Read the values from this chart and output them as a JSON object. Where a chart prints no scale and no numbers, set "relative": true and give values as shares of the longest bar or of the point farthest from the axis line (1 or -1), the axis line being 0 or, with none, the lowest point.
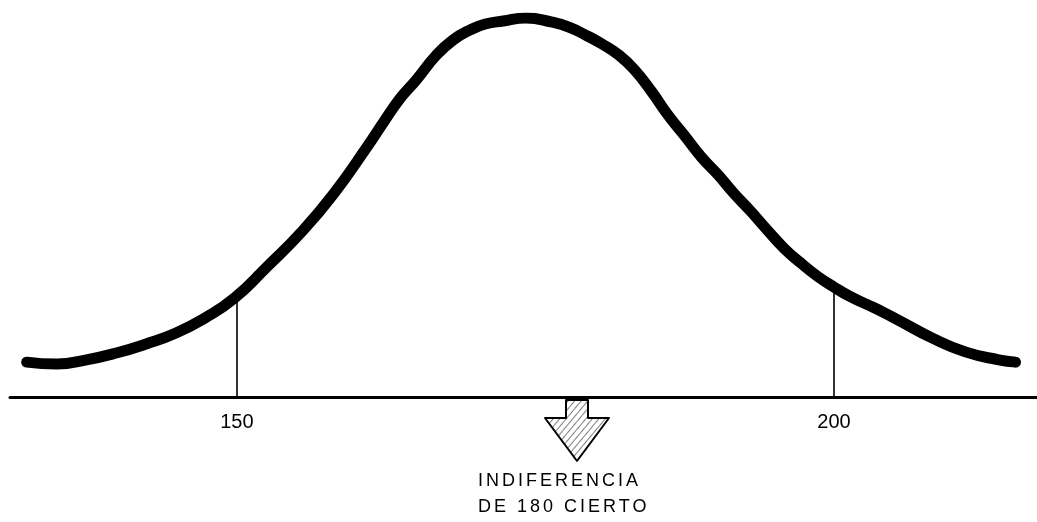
{
  "chart_data": {
    "type": "line",
    "relative": true,
    "x": [
      132.4,
      134.9,
      137.4,
      139.9,
      142.4,
      144.9,
      147.3,
      149.8,
      152.6,
      155.4,
      158.1,
      160.9,
      162.3,
      163.7,
      165.0,
      166.7,
      168.1,
      169.5,
      170.8,
      172.3,
      174.2,
      176.4,
      177.8,
      179.2,
      180.6,
      182.0,
      183.3,
      184.7,
      186.1,
      187.5,
      188.9,
      190.3,
      191.6,
      193.0,
      194.4,
      195.8,
      197.2,
      198.6,
      200.0,
      201.3,
      202.7,
      204.1,
      205.5,
      208.2,
      211.0,
      213.8,
      215.2
    ],
    "series": [
      {
        "color": "#000000",
        "values": [
          0.092,
          0.087,
          0.098,
          0.116,
          0.14,
          0.169,
          0.208,
          0.261,
          0.346,
          0.435,
          0.536,
          0.66,
          0.726,
          0.789,
          0.836,
          0.902,
          0.942,
          0.968,
          0.984,
          0.992,
          1.0,
          0.989,
          0.976,
          0.955,
          0.931,
          0.902,
          0.863,
          0.807,
          0.744,
          0.689,
          0.633,
          0.586,
          0.538,
          0.491,
          0.441,
          0.393,
          0.354,
          0.319,
          0.29,
          0.266,
          0.245,
          0.224,
          0.201,
          0.156,
          0.119,
          0.098,
          0.092
        ]
      }
    ],
    "xlim": [
      131,
      217
    ],
    "xticks": [
      150,
      200
    ],
    "ref_lines": [
      {
        "axis": "x",
        "value": 150,
        "color": "#000000"
      },
      {
        "axis": "x",
        "value": 200,
        "color": "#000000"
      }
    ],
    "annotations": [
      "INDIFERENCIA\nDE 180 CIERTO"
    ],
    "marker": "none",
    "line_style": "solid"
  }
}
